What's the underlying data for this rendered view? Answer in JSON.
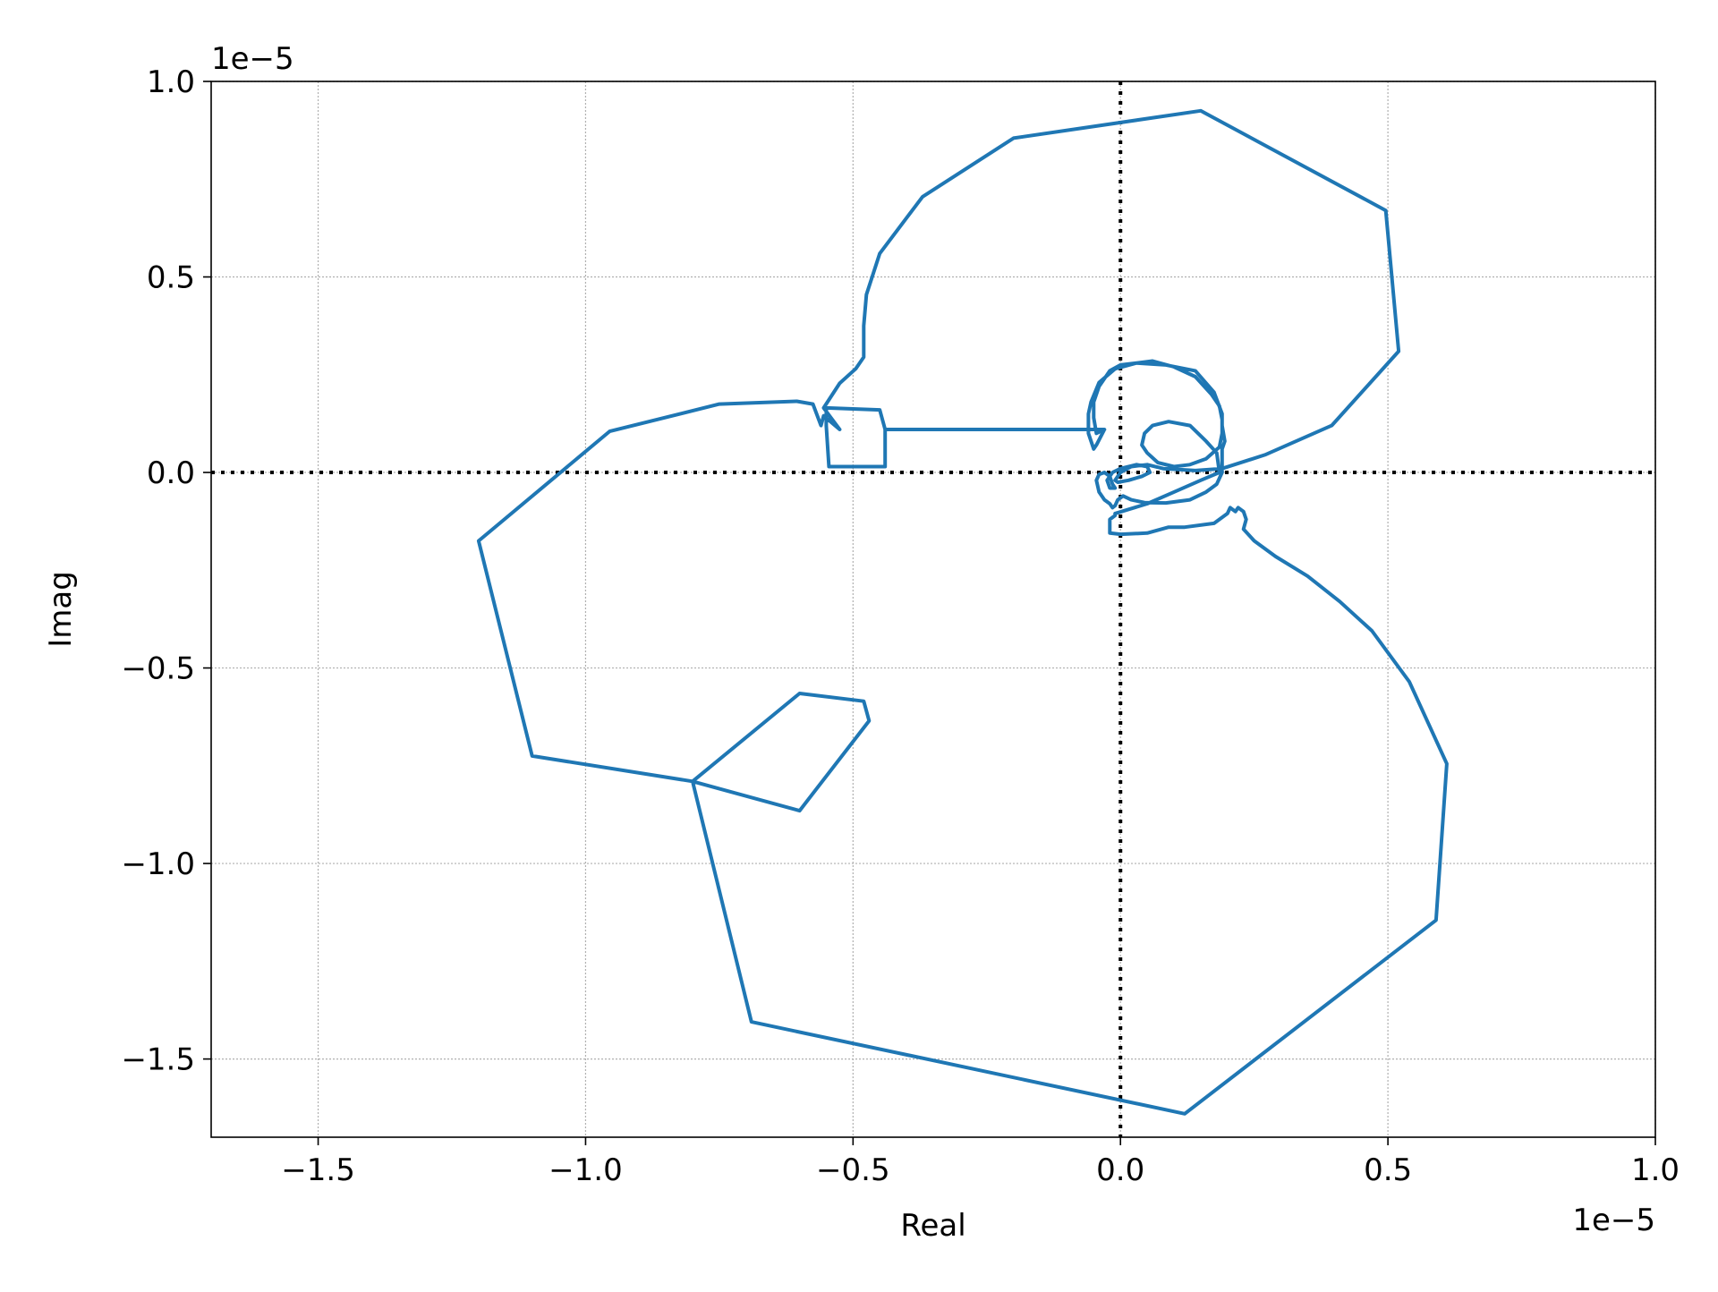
{
  "chart_data": {
    "type": "line",
    "xlabel": "Real",
    "ylabel": "Imag",
    "x_offset_text": "1e−5",
    "y_offset_text": "1e−5",
    "xlim": [
      -1.7,
      1.0
    ],
    "ylim": [
      -1.7,
      1.0
    ],
    "x_ticks": [
      -1.5,
      -1.0,
      -0.5,
      0.0,
      0.5,
      1.0
    ],
    "y_ticks": [
      -1.5,
      -1.0,
      -0.5,
      0.0,
      0.5,
      1.0
    ],
    "x_tick_labels": [
      "−1.5",
      "−1.0",
      "−0.5",
      "0.0",
      "0.5",
      "1.0"
    ],
    "y_tick_labels": [
      "−1.5",
      "−1.0",
      "−0.5",
      "0.0",
      "0.5",
      "1.0"
    ],
    "grid": true,
    "reference_lines": {
      "x": 0.0,
      "y": 0.0,
      "style": "dotted",
      "color": "#000000"
    },
    "series_color": "#1f77b4",
    "series": [
      {
        "points": [
          [
            -0.03,
            0.11
          ],
          [
            -0.045,
            0.07
          ],
          [
            -0.05,
            0.06
          ],
          [
            -0.06,
            0.1
          ],
          [
            -0.06,
            0.15
          ],
          [
            -0.055,
            0.18
          ],
          [
            -0.04,
            0.23
          ],
          [
            -0.01,
            0.265
          ],
          [
            0.03,
            0.28
          ],
          [
            0.085,
            0.275
          ],
          [
            0.14,
            0.26
          ],
          [
            0.175,
            0.205
          ],
          [
            0.19,
            0.15
          ],
          [
            0.19,
            0.12
          ],
          [
            0.195,
            0.08
          ],
          [
            0.19,
            0.06
          ],
          [
            0.19,
            0.0
          ],
          [
            0.18,
            -0.03
          ],
          [
            0.16,
            -0.05
          ],
          [
            0.13,
            -0.07
          ],
          [
            0.085,
            -0.078
          ],
          [
            0.045,
            -0.077
          ],
          [
            0.02,
            -0.07
          ],
          [
            0.005,
            -0.06
          ],
          [
            -0.005,
            -0.07
          ],
          [
            -0.01,
            -0.085
          ],
          [
            -0.015,
            -0.09
          ],
          [
            -0.02,
            -0.08
          ],
          [
            -0.03,
            -0.07
          ],
          [
            -0.04,
            -0.05
          ],
          [
            -0.045,
            -0.02
          ],
          [
            -0.04,
            -0.005
          ],
          [
            -0.03,
            0.0
          ],
          [
            -0.02,
            -0.01
          ],
          [
            -0.015,
            -0.03
          ],
          [
            -0.01,
            -0.04
          ],
          [
            -0.02,
            -0.04
          ],
          [
            -0.025,
            -0.02
          ],
          [
            -0.015,
            0.0
          ],
          [
            0.0,
            0.01
          ],
          [
            0.03,
            0.02
          ],
          [
            0.05,
            0.015
          ],
          [
            0.055,
            0.0
          ],
          [
            0.04,
            -0.01
          ],
          [
            0.015,
            -0.02
          ],
          [
            -0.005,
            -0.025
          ],
          [
            -0.01,
            -0.02
          ],
          [
            0.0,
            0.0
          ],
          [
            0.02,
            0.015
          ],
          [
            0.05,
            0.02
          ],
          [
            0.08,
            0.01
          ],
          [
            0.14,
            0.005
          ],
          [
            0.19,
            0.01
          ],
          [
            0.27,
            0.045
          ],
          [
            0.395,
            0.12
          ],
          [
            0.52,
            0.31
          ],
          [
            0.496,
            0.67
          ],
          [
            0.15,
            0.925
          ],
          [
            -0.2,
            0.855
          ],
          [
            -0.37,
            0.705
          ],
          [
            -0.45,
            0.56
          ],
          [
            -0.475,
            0.455
          ],
          [
            -0.48,
            0.375
          ],
          [
            -0.48,
            0.295
          ],
          [
            -0.495,
            0.265
          ],
          [
            -0.525,
            0.228
          ],
          [
            -0.555,
            0.165
          ],
          [
            -0.525,
            0.11
          ],
          [
            -0.555,
            0.145
          ],
          [
            -0.56,
            0.12
          ],
          [
            -0.575,
            0.175
          ],
          [
            -0.605,
            0.182
          ],
          [
            -0.75,
            0.175
          ],
          [
            -0.955,
            0.105
          ],
          [
            -1.2,
            -0.175
          ],
          [
            -1.1,
            -0.725
          ],
          [
            -0.8,
            -0.79
          ],
          [
            -0.6,
            -0.565
          ],
          [
            -0.48,
            -0.585
          ],
          [
            -0.47,
            -0.635
          ],
          [
            -0.6,
            -0.865
          ],
          [
            -0.8,
            -0.79
          ],
          [
            -0.69,
            -1.405
          ],
          [
            0.12,
            -1.64
          ],
          [
            0.59,
            -1.145
          ],
          [
            0.61,
            -0.745
          ],
          [
            0.54,
            -0.535
          ],
          [
            0.47,
            -0.405
          ],
          [
            0.41,
            -0.33
          ],
          [
            0.35,
            -0.265
          ],
          [
            0.29,
            -0.215
          ],
          [
            0.25,
            -0.175
          ],
          [
            0.23,
            -0.145
          ],
          [
            0.235,
            -0.12
          ],
          [
            0.23,
            -0.1
          ],
          [
            0.22,
            -0.09
          ],
          [
            0.215,
            -0.1
          ],
          [
            0.205,
            -0.09
          ],
          [
            0.2,
            -0.105
          ],
          [
            0.175,
            -0.13
          ],
          [
            0.12,
            -0.14
          ],
          [
            0.09,
            -0.14
          ],
          [
            0.05,
            -0.155
          ],
          [
            0.0,
            -0.158
          ],
          [
            -0.02,
            -0.155
          ],
          [
            -0.02,
            -0.12
          ],
          [
            -0.01,
            -0.11
          ],
          [
            -0.01,
            -0.105
          ],
          [
            0.05,
            -0.08
          ],
          [
            0.1,
            -0.05
          ],
          [
            0.15,
            -0.02
          ],
          [
            0.185,
            0.0
          ],
          [
            0.18,
            0.05
          ],
          [
            0.16,
            0.08
          ],
          [
            0.13,
            0.12
          ],
          [
            0.09,
            0.13
          ],
          [
            0.06,
            0.12
          ],
          [
            0.045,
            0.1
          ],
          [
            0.04,
            0.07
          ],
          [
            0.05,
            0.05
          ],
          [
            0.07,
            0.025
          ],
          [
            0.1,
            0.015
          ],
          [
            0.13,
            0.02
          ],
          [
            0.16,
            0.035
          ],
          [
            0.185,
            0.065
          ],
          [
            0.19,
            0.1
          ],
          [
            0.19,
            0.135
          ],
          [
            0.185,
            0.17
          ],
          [
            0.17,
            0.2
          ],
          [
            0.14,
            0.245
          ],
          [
            0.1,
            0.27
          ],
          [
            0.06,
            0.285
          ],
          [
            0.03,
            0.28
          ],
          [
            0.0,
            0.275
          ],
          [
            -0.02,
            0.26
          ],
          [
            -0.04,
            0.22
          ],
          [
            -0.05,
            0.18
          ],
          [
            -0.05,
            0.14
          ],
          [
            -0.045,
            0.1
          ],
          [
            -0.03,
            0.11
          ],
          [
            -0.44,
            0.11
          ],
          [
            -0.45,
            0.16
          ],
          [
            -0.55,
            0.165
          ],
          [
            -0.55,
            0.12
          ],
          [
            -0.545,
            0.015
          ],
          [
            -0.44,
            0.015
          ],
          [
            -0.44,
            0.11
          ]
        ]
      }
    ]
  }
}
